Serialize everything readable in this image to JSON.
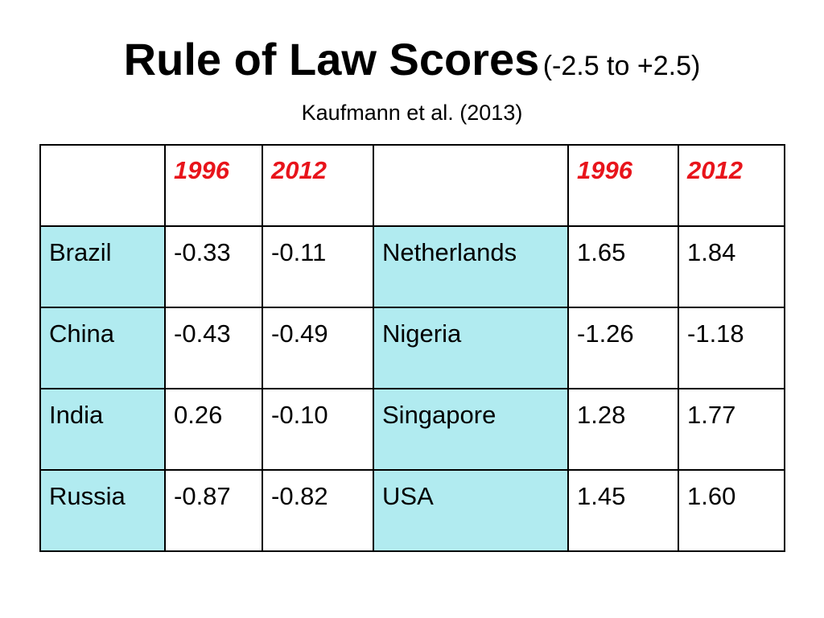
{
  "title": {
    "main": "Rule of Law Scores",
    "range": "(-2.5 to +2.5)",
    "subtitle": "Kaufmann et al. (2013)"
  },
  "table": {
    "header": [
      "",
      "1996",
      "2012",
      "",
      "1996",
      "2012"
    ],
    "rows": [
      {
        "country_left": "Brazil",
        "left_1996": "-0.33",
        "left_2012": "-0.11",
        "country_right": "Netherlands",
        "right_1996": "1.65",
        "right_2012": "1.84"
      },
      {
        "country_left": "China",
        "left_1996": "-0.43",
        "left_2012": "-0.49",
        "country_right": "Nigeria",
        "right_1996": "-1.26",
        "right_2012": "-1.18"
      },
      {
        "country_left": "India",
        "left_1996": "0.26",
        "left_2012": "-0.10",
        "country_right": "Singapore",
        "right_1996": "1.28",
        "right_2012": "1.77"
      },
      {
        "country_left": "Russia",
        "left_1996": "-0.87",
        "left_2012": "-0.82",
        "country_right": "USA",
        "right_1996": "1.45",
        "right_2012": "1.60"
      }
    ]
  },
  "colors": {
    "year_header": "#e8141b",
    "country_cell": "#b1ebf0",
    "border": "#000000"
  }
}
